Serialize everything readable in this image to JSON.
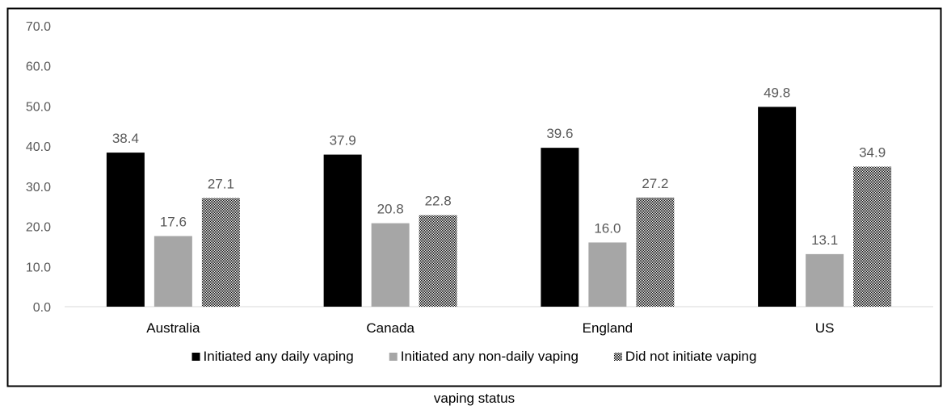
{
  "chart_data": {
    "type": "bar",
    "categories": [
      "Australia",
      "Canada",
      "England",
      "US"
    ],
    "series": [
      {
        "name": "Initiated any daily vaping",
        "values": [
          38.4,
          37.9,
          39.6,
          49.8
        ],
        "color": "#000000",
        "pattern": "solid"
      },
      {
        "name": "Initiated any non-daily vaping",
        "values": [
          17.6,
          20.8,
          16.0,
          13.1
        ],
        "color": "#a6a6a6",
        "pattern": "solid"
      },
      {
        "name": "Did not initiate vaping",
        "values": [
          27.1,
          22.8,
          27.2,
          34.9
        ],
        "color": "#000000",
        "pattern": "crosshatch"
      }
    ],
    "y_ticks": [
      "0.0",
      "10.0",
      "20.0",
      "30.0",
      "40.0",
      "50.0",
      "60.0",
      "70.0"
    ],
    "ylim": [
      0,
      70
    ],
    "data_label_format": "one-decimal",
    "legend_position": "bottom",
    "gridlines": false,
    "xlabel": "vaping status",
    "ylabel": ""
  }
}
